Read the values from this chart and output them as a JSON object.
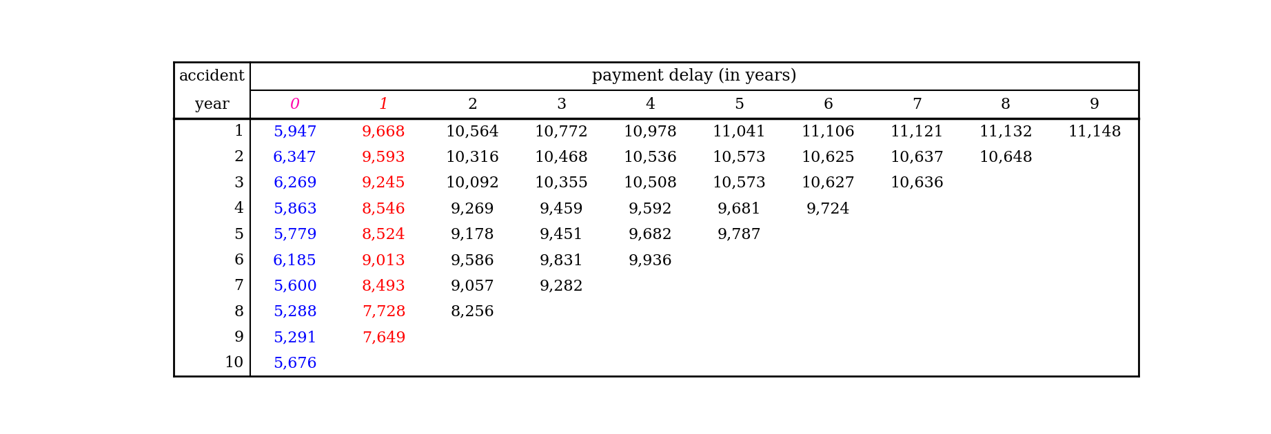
{
  "title_top": "payment delay (in years)",
  "col_headers": [
    "0",
    "1",
    "2",
    "3",
    "4",
    "5",
    "6",
    "7",
    "8",
    "9"
  ],
  "row_labels": [
    "1",
    "2",
    "3",
    "4",
    "5",
    "6",
    "7",
    "8",
    "9",
    "10"
  ],
  "table_data": [
    [
      "5,947",
      "9,668",
      "10,564",
      "10,772",
      "10,978",
      "11,041",
      "11,106",
      "11,121",
      "11,132",
      "11,148"
    ],
    [
      "6,347",
      "9,593",
      "10,316",
      "10,468",
      "10,536",
      "10,573",
      "10,625",
      "10,637",
      "10,648",
      ""
    ],
    [
      "6,269",
      "9,245",
      "10,092",
      "10,355",
      "10,508",
      "10,573",
      "10,627",
      "10,636",
      "",
      ""
    ],
    [
      "5,863",
      "8,546",
      "9,269",
      "9,459",
      "9,592",
      "9,681",
      "9,724",
      "",
      "",
      ""
    ],
    [
      "5,779",
      "8,524",
      "9,178",
      "9,451",
      "9,682",
      "9,787",
      "",
      "",
      "",
      ""
    ],
    [
      "6,185",
      "9,013",
      "9,586",
      "9,831",
      "9,936",
      "",
      "",
      "",
      "",
      ""
    ],
    [
      "5,600",
      "8,493",
      "9,057",
      "9,282",
      "",
      "",
      "",
      "",
      "",
      ""
    ],
    [
      "5,288",
      "7,728",
      "8,256",
      "",
      "",
      "",
      "",
      "",
      "",
      ""
    ],
    [
      "5,291",
      "7,649",
      "",
      "",
      "",
      "",
      "",
      "",
      "",
      ""
    ],
    [
      "5,676",
      "",
      "",
      "",
      "",
      "",
      "",
      "",
      "",
      ""
    ]
  ],
  "col0_color": "#0000FF",
  "col1_color": "#FF0000",
  "default_color": "#000000",
  "header_col0_color": "#FF00AA",
  "header_col1_color": "#FF0000",
  "background_color": "#FFFFFF",
  "font_size": 16,
  "header_font_size": 16,
  "title_font_size": 17,
  "lw_outer": 2.0,
  "lw_inner": 1.5,
  "lw_thick": 2.5
}
